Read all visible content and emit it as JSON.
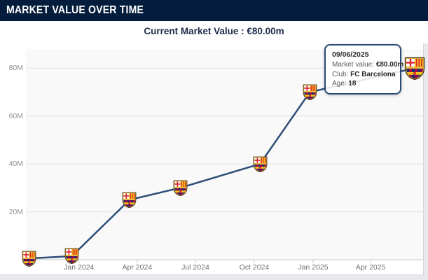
{
  "header": {
    "title": "MARKET VALUE OVER TIME"
  },
  "subtitle": {
    "text": "Current Market Value : €80.00m"
  },
  "tooltip": {
    "date": "09/06/2025",
    "market_value_label": "Market value:",
    "market_value": "€80.00m",
    "club_label": "Club:",
    "club": "FC Barcelona",
    "age_label": "Age:",
    "age": "18"
  },
  "icons": {
    "data_point_icon": "barcelona-crest-icon"
  },
  "colors": {
    "header_bg": "#051d3c",
    "line": "#2e4d77",
    "tooltip_border": "#2b4a73",
    "plot_bg": "#f9f9f9",
    "grid": "#e1e1e1",
    "axis": "#c9c9c9",
    "footer_strip": "#e7e9ec"
  },
  "chart_data": {
    "type": "line",
    "title": "Market Value Over Time",
    "legend": "none",
    "grid": "horizontal",
    "x_axis": {
      "ticks": [
        "Jan 2024",
        "Apr 2024",
        "Jul 2024",
        "Oct 2024",
        "Jan 2025",
        "Apr 2025"
      ],
      "tick_dates": [
        "2024-01-01",
        "2024-04-01",
        "2024-07-01",
        "2024-10-01",
        "2025-01-01",
        "2025-04-01"
      ],
      "range": [
        "2023-10-10",
        "2025-06-22"
      ]
    },
    "y_axis": {
      "ticks": [
        "20M",
        "40M",
        "60M",
        "80M"
      ],
      "tick_values": [
        20,
        40,
        60,
        80
      ],
      "range": [
        0,
        88
      ],
      "unit": "€ million"
    },
    "series": [
      {
        "name": "Market value",
        "club": "FC Barcelona",
        "points": [
          {
            "date": "2023-10-15",
            "value_m": 0.5
          },
          {
            "date": "2023-12-21",
            "value_m": 1.5
          },
          {
            "date": "2024-03-20",
            "value_m": 25
          },
          {
            "date": "2024-06-07",
            "value_m": 30
          },
          {
            "date": "2024-10-10",
            "value_m": 40
          },
          {
            "date": "2024-12-27",
            "value_m": 70
          },
          {
            "date": "2025-06-09",
            "value_m": 80,
            "highlighted": true
          }
        ]
      }
    ]
  }
}
